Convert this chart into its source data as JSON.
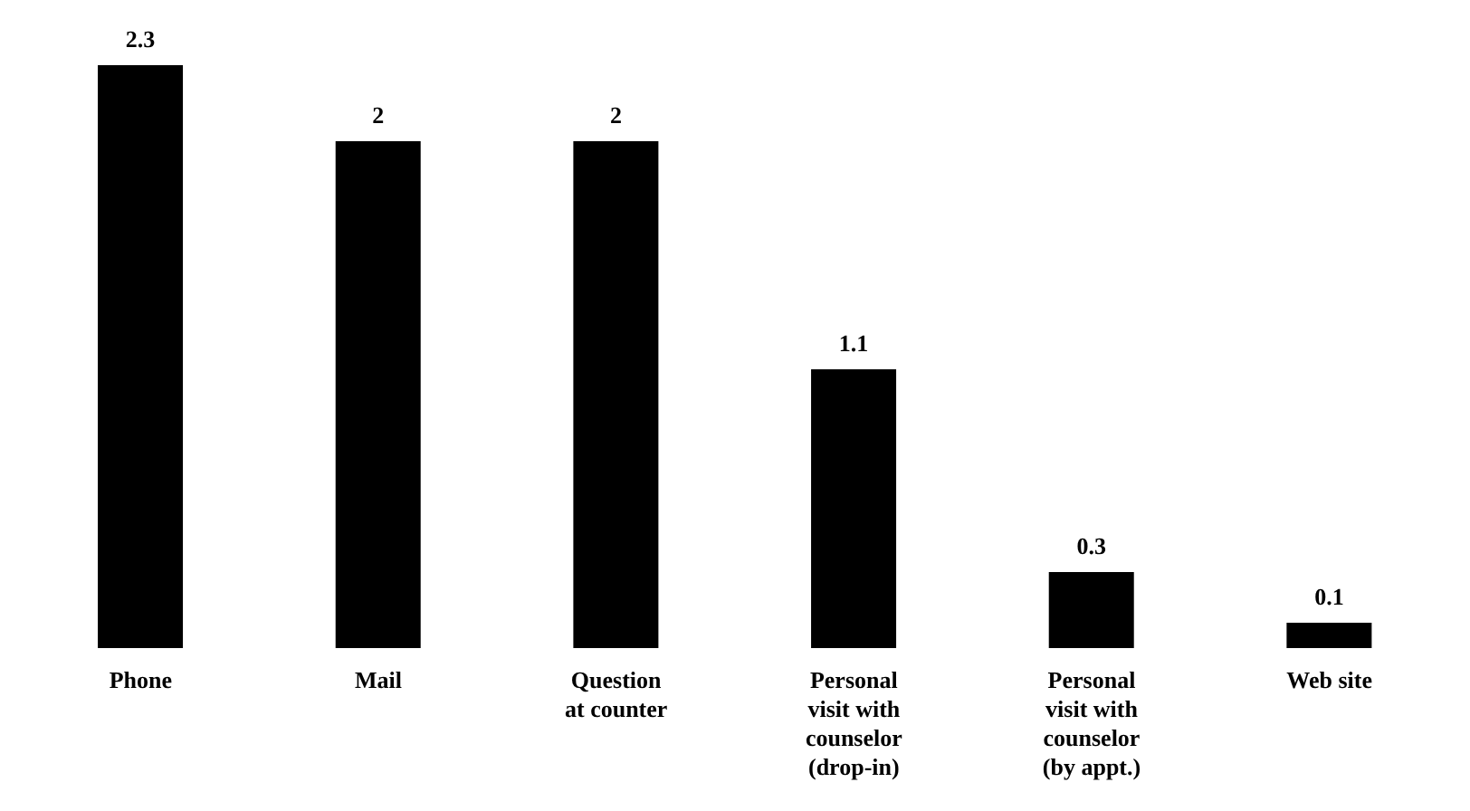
{
  "chart_data": {
    "type": "bar",
    "categories": [
      "Phone",
      "Mail",
      "Question at counter",
      "Personal visit with counselor (drop-in)",
      "Personal visit with counselor (by appt.)",
      "Web site"
    ],
    "values": [
      2.3,
      2,
      2,
      1.1,
      0.3,
      0.1
    ],
    "color": "#000000",
    "data_labels": true,
    "grid": false,
    "legend": false
  }
}
